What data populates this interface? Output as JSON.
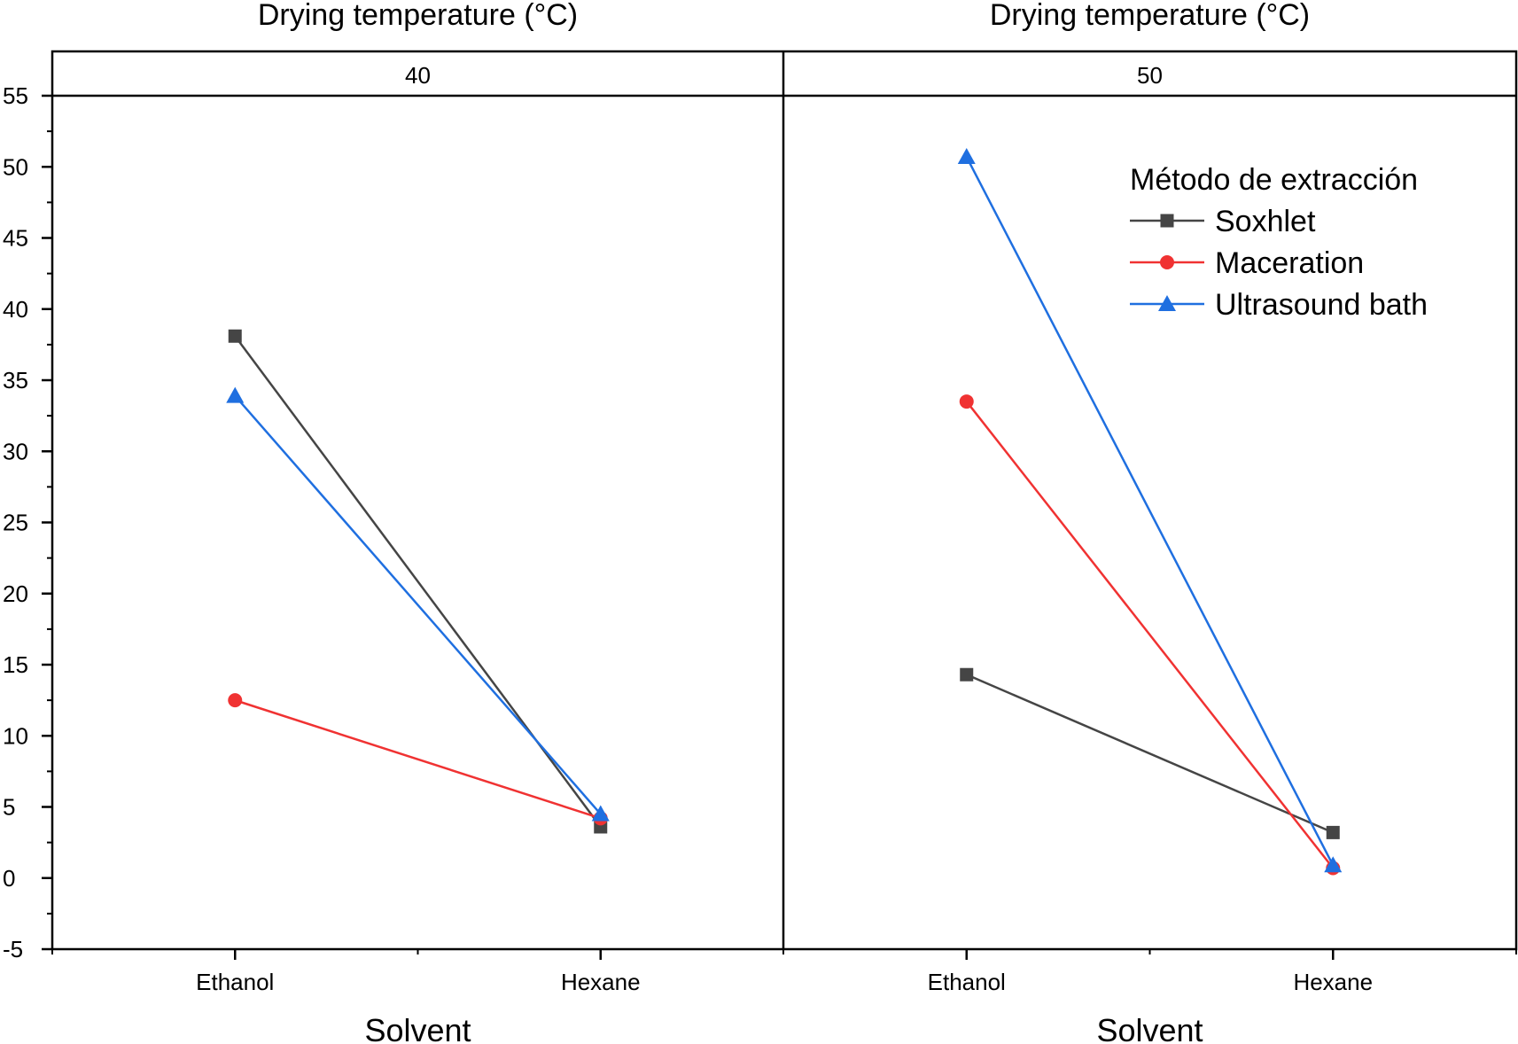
{
  "chart_data": {
    "type": "line",
    "facet_title": "Drying temperature (°C)",
    "xlabel": "Solvent",
    "ylabel": "",
    "ylim": [
      -5,
      55
    ],
    "yticks": [
      -5,
      0,
      5,
      10,
      15,
      20,
      25,
      30,
      35,
      40,
      45,
      50,
      55
    ],
    "categories": [
      "Ethanol",
      "Hexane"
    ],
    "legend": {
      "title": "Método de extracción",
      "placement": "upper-right of right panel"
    },
    "panels": [
      {
        "label": "40",
        "series": [
          {
            "name": "Soxhlet",
            "color": "#454545",
            "marker": "square",
            "values": [
              38.1,
              3.6
            ]
          },
          {
            "name": "Maceration",
            "color": "#f03232",
            "marker": "circle",
            "values": [
              12.5,
              4.2
            ]
          },
          {
            "name": "Ultrasound bath",
            "color": "#1f6fe0",
            "marker": "triangle",
            "values": [
              33.9,
              4.5
            ]
          }
        ]
      },
      {
        "label": "50",
        "series": [
          {
            "name": "Soxhlet",
            "color": "#454545",
            "marker": "square",
            "values": [
              14.3,
              3.2
            ]
          },
          {
            "name": "Maceration",
            "color": "#f03232",
            "marker": "circle",
            "values": [
              33.5,
              0.7
            ]
          },
          {
            "name": "Ultrasound bath",
            "color": "#1f6fe0",
            "marker": "triangle",
            "values": [
              50.7,
              0.9
            ]
          }
        ]
      }
    ]
  }
}
